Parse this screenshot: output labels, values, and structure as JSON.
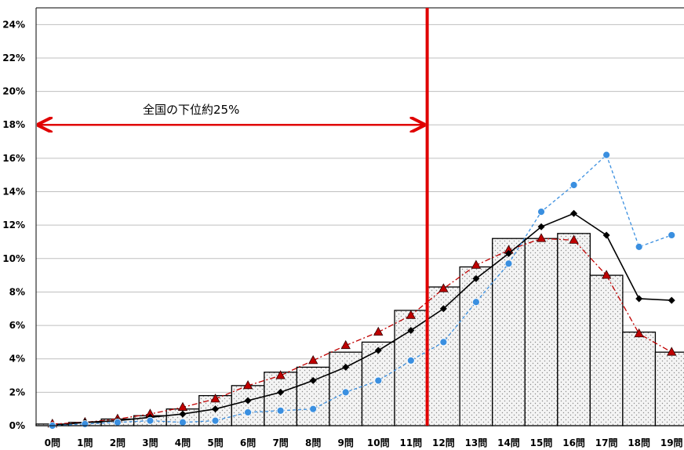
{
  "chart_data": {
    "type": "bar",
    "categories": [
      "0問",
      "1問",
      "2問",
      "3問",
      "4問",
      "5問",
      "6問",
      "7問",
      "8問",
      "9問",
      "10問",
      "11問",
      "12問",
      "13問",
      "14問",
      "15問",
      "16問",
      "17問",
      "18問",
      "19問"
    ],
    "ylim": [
      0,
      25
    ],
    "yticks": [
      0,
      2,
      4,
      6,
      8,
      10,
      12,
      14,
      16,
      18,
      20,
      22,
      24
    ],
    "ytick_labels": [
      "0%",
      "2%",
      "4%",
      "6%",
      "8%",
      "10%",
      "12%",
      "14%",
      "16%",
      "18%",
      "20%",
      "22%",
      "24%"
    ],
    "grid": true,
    "series": [
      {
        "kind": "bar",
        "color": "#000000",
        "values": [
          0.1,
          0.2,
          0.4,
          0.6,
          1.0,
          1.8,
          2.4,
          3.2,
          3.5,
          4.4,
          5.0,
          6.9,
          8.3,
          9.5,
          11.2,
          11.2,
          11.5,
          9.0,
          5.6,
          4.4
        ]
      },
      {
        "kind": "line",
        "marker": "triangle",
        "color": "#c00000",
        "values": [
          0.1,
          0.2,
          0.4,
          0.7,
          1.1,
          1.6,
          2.4,
          3.0,
          3.9,
          4.8,
          5.6,
          6.6,
          8.2,
          9.6,
          10.5,
          11.2,
          11.1,
          9.0,
          5.5,
          4.4
        ]
      },
      {
        "kind": "line",
        "marker": "diamond",
        "color": "#000000",
        "values": [
          0.0,
          0.2,
          0.3,
          0.5,
          0.7,
          1.0,
          1.5,
          2.0,
          2.7,
          3.5,
          4.5,
          5.7,
          7.0,
          8.8,
          10.3,
          11.9,
          12.7,
          11.4,
          7.6,
          7.5
        ]
      },
      {
        "kind": "line",
        "marker": "circle",
        "color": "#3a8fe0",
        "values": [
          0.0,
          0.1,
          0.2,
          0.3,
          0.2,
          0.3,
          0.8,
          0.9,
          1.0,
          2.0,
          2.7,
          3.9,
          5.0,
          7.4,
          9.7,
          12.8,
          14.4,
          16.2,
          10.7,
          11.4
        ]
      }
    ],
    "annotation": {
      "text": "全国の下位約25%",
      "arrow_y": 18,
      "divider_after_index": 11
    }
  },
  "colors": {
    "divider": "#e00000",
    "arrow": "#e00000",
    "bar_fill": "#f3f3f3",
    "grid": "#bfbfbf"
  }
}
